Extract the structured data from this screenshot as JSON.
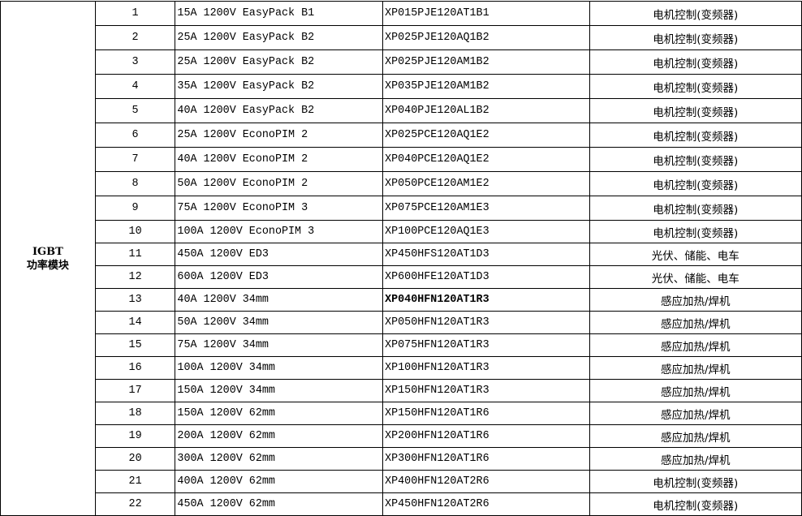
{
  "category": {
    "line1": "IGBT",
    "line2": "功率模块"
  },
  "rows": [
    {
      "no": "1",
      "model": "15A 1200V EasyPack B1",
      "part": "XP015PJE120AT1B1",
      "app": "电机控制(变频器)"
    },
    {
      "no": "2",
      "model": "25A 1200V EasyPack B2",
      "part": "XP025PJE120AQ1B2",
      "app": "电机控制(变频器)"
    },
    {
      "no": "3",
      "model": "25A 1200V EasyPack B2",
      "part": "XP025PJE120AM1B2",
      "app": "电机控制(变频器)"
    },
    {
      "no": "4",
      "model": "35A 1200V EasyPack B2",
      "part": "XP035PJE120AM1B2",
      "app": "电机控制(变频器)"
    },
    {
      "no": "5",
      "model": "40A 1200V EasyPack B2",
      "part": "XP040PJE120AL1B2",
      "app": "电机控制(变频器)"
    },
    {
      "no": "6",
      "model": "25A 1200V EconoPIM 2",
      "part": "XP025PCE120AQ1E2",
      "app": "电机控制(变频器)"
    },
    {
      "no": "7",
      "model": "40A 1200V EconoPIM 2",
      "part": "XP040PCE120AQ1E2",
      "app": "电机控制(变频器)"
    },
    {
      "no": "8",
      "model": "50A 1200V EconoPIM 2",
      "part": "XP050PCE120AM1E2",
      "app": "电机控制(变频器)"
    },
    {
      "no": "9",
      "model": "75A 1200V EconoPIM 3",
      "part": "XP075PCE120AM1E3",
      "app": "电机控制(变频器)"
    },
    {
      "no": "10",
      "model": "100A 1200V EconoPIM 3",
      "part": "XP100PCE120AQ1E3",
      "app": "电机控制(变频器)"
    },
    {
      "no": "11",
      "model": "450A 1200V ED3",
      "part": "XP450HFS120AT1D3",
      "app": "光伏、储能、电车"
    },
    {
      "no": "12",
      "model": "600A 1200V ED3",
      "part": "XP600HFE120AT1D3",
      "app": "光伏、储能、电车"
    },
    {
      "no": "13",
      "model": "40A 1200V 34mm",
      "part": "XP040HFN120AT1R3",
      "app": "感应加热/焊机",
      "bold": true
    },
    {
      "no": "14",
      "model": "50A 1200V 34mm",
      "part": "XP050HFN120AT1R3",
      "app": "感应加热/焊机"
    },
    {
      "no": "15",
      "model": "75A 1200V 34mm",
      "part": "XP075HFN120AT1R3",
      "app": "感应加热/焊机"
    },
    {
      "no": "16",
      "model": "100A 1200V 34mm",
      "part": "XP100HFN120AT1R3",
      "app": "感应加热/焊机"
    },
    {
      "no": "17",
      "model": "150A 1200V 34mm",
      "part": "XP150HFN120AT1R3",
      "app": "感应加热/焊机"
    },
    {
      "no": "18",
      "model": "150A 1200V 62mm",
      "part": "XP150HFN120AT1R6",
      "app": "感应加热/焊机"
    },
    {
      "no": "19",
      "model": "200A 1200V 62mm",
      "part": "XP200HFN120AT1R6",
      "app": "感应加热/焊机"
    },
    {
      "no": "20",
      "model": "300A 1200V 62mm",
      "part": "XP300HFN120AT1R6",
      "app": "感应加热/焊机"
    },
    {
      "no": "21",
      "model": "400A 1200V 62mm",
      "part": "XP400HFN120AT2R6",
      "app": "电机控制(变频器)"
    },
    {
      "no": "22",
      "model": "450A 1200V 62mm",
      "part": "XP450HFN120AT2R6",
      "app": "电机控制(变频器)"
    }
  ]
}
